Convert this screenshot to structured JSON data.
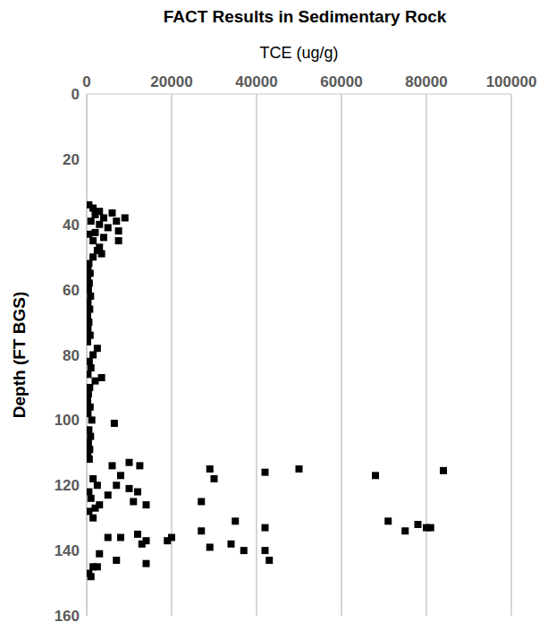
{
  "chart_data": {
    "type": "scatter",
    "title": "FACT Results in Sedimentary Rock",
    "xlabel": "TCE (ug/g)",
    "ylabel": "Depth (FT BGS)",
    "x": [
      500,
      1500,
      3000,
      6000,
      2000,
      4000,
      9000,
      7000,
      1000,
      3000,
      5000,
      7500,
      2000,
      500,
      4000,
      7500,
      1500,
      3000,
      2500,
      3500,
      1500,
      500,
      300,
      800,
      200,
      600,
      400,
      900,
      300,
      700,
      200,
      500,
      300,
      800,
      200,
      2500,
      1500,
      600,
      1000,
      300,
      3500,
      2000,
      700,
      400,
      200,
      800,
      300,
      6500,
      1200,
      500,
      900,
      400,
      700,
      300,
      600,
      1500,
      2500,
      500,
      1000,
      3000,
      500,
      1500,
      2000,
      10000,
      12500,
      29000,
      42000,
      50000,
      68000,
      84000,
      30000,
      6000,
      8000,
      7000,
      10000,
      12000,
      11000,
      14000,
      5000,
      27000,
      35000,
      42000,
      71000,
      75000,
      78000,
      80000,
      81000,
      5000,
      8000,
      12000,
      14000,
      13000,
      20000,
      19000,
      27000,
      29000,
      34000,
      37000,
      42000,
      43000,
      7000,
      14000,
      3000,
      1500,
      2500,
      500,
      1000
    ],
    "values": [
      34,
      35,
      36,
      36.5,
      37,
      38,
      38,
      39,
      39,
      40,
      41,
      42,
      42.5,
      43,
      44,
      45,
      45,
      47,
      48,
      49,
      50,
      52,
      54,
      55,
      57,
      58,
      60,
      62,
      64,
      66,
      68,
      70,
      72,
      74,
      76,
      78,
      80,
      82,
      84,
      86,
      87,
      88,
      90,
      92,
      94,
      96,
      98,
      101,
      100,
      103,
      105,
      107,
      109,
      111,
      112,
      118,
      120,
      122,
      124,
      126,
      128,
      130,
      127,
      113,
      114,
      115,
      116,
      115,
      117,
      115.5,
      118,
      114,
      117,
      120,
      121,
      122,
      125,
      126,
      123,
      125,
      131,
      133,
      131,
      134,
      132,
      133,
      133,
      136,
      136,
      135,
      137,
      138,
      136,
      137,
      134,
      139,
      138,
      140,
      140,
      143,
      143,
      144,
      141,
      145,
      145,
      147,
      148
    ],
    "color": "#000000",
    "marker": "square",
    "xlim": [
      0,
      100000
    ],
    "xticks": [
      0,
      20000,
      40000,
      60000,
      80000,
      100000
    ],
    "ylim": [
      0,
      160
    ],
    "yticks": [
      0,
      20,
      40,
      60,
      80,
      100,
      120,
      140,
      160
    ],
    "grid": true
  }
}
